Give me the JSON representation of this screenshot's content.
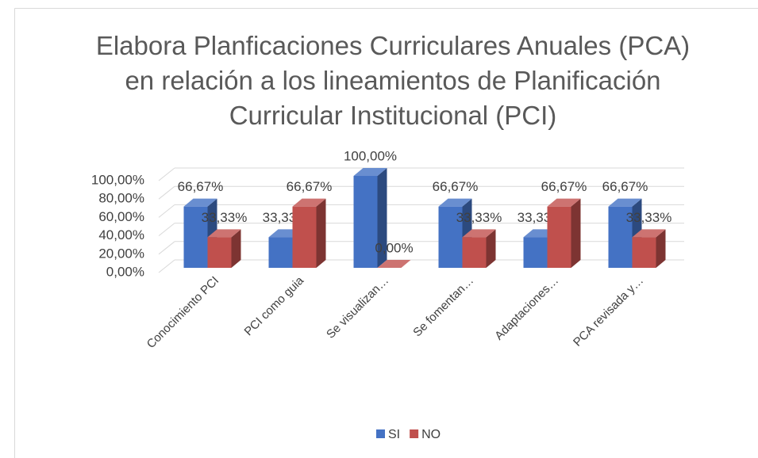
{
  "chart_data": {
    "type": "bar3d",
    "title": "Elabora Planficaciones Curriculares Anuales (PCA) en relación a los lineamientos de Planificación Curricular Institucional (PCI)",
    "categories": [
      "Conocimiento PCI",
      "PCI como guia",
      "Se visualizan…",
      "Se fomentan…",
      "Adaptaciones…",
      "PCA revisada y…"
    ],
    "series": [
      {
        "name": "SI",
        "color": "#4472c4",
        "values": [
          66.67,
          33.33,
          100,
          66.67,
          33.33,
          66.67
        ],
        "value_labels": [
          "66,67%",
          "33,33%",
          "100,00%",
          "66,67%",
          "33,33%",
          "66,67%"
        ]
      },
      {
        "name": "NO",
        "color": "#c0504d",
        "values": [
          33.33,
          66.67,
          0,
          33.33,
          66.67,
          33.33
        ],
        "value_labels": [
          "33,33%",
          "66,67%",
          "0,00%",
          "33,33%",
          "66,67%",
          "33,33%"
        ]
      }
    ],
    "ylim": [
      0,
      100
    ],
    "yticks": [
      {
        "value": 0,
        "label": "0,00%"
      },
      {
        "value": 20,
        "label": "20,00%"
      },
      {
        "value": 40,
        "label": "40,00%"
      },
      {
        "value": 60,
        "label": "60,00%"
      },
      {
        "value": 80,
        "label": "80,00%"
      },
      {
        "value": 100,
        "label": "100,00%"
      }
    ],
    "grid": true,
    "legend": "bottom"
  }
}
